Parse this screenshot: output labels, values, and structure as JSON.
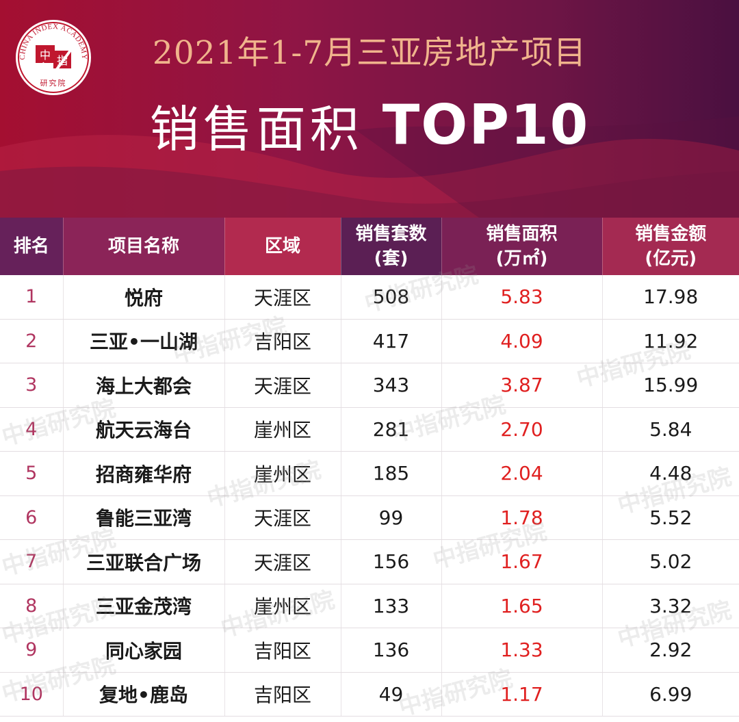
{
  "logo": {
    "ring_text": "CHINA INDEX ACADEMY",
    "center_top": "中",
    "center_bottom": "指",
    "footer_text": "研究院"
  },
  "title": {
    "line1": "2021年1-7月三亚房地产项目",
    "line2_cn": "销售面积",
    "line2_en": "TOP10"
  },
  "colors": {
    "banner": "#9e1238",
    "title_gold": "#f0b48c",
    "area_value": "#e02020",
    "rank_number": "#b03560"
  },
  "chart_data": {
    "type": "table",
    "columns": [
      "排名",
      "项目名称",
      "区域",
      "销售套数\n(套)",
      "销售面积\n(万㎡)",
      "销售金额\n(亿元)"
    ],
    "rows": [
      [
        "1",
        "悦府",
        "天涯区",
        "508",
        "5.83",
        "17.98"
      ],
      [
        "2",
        "三亚•一山湖",
        "吉阳区",
        "417",
        "4.09",
        "11.92"
      ],
      [
        "3",
        "海上大都会",
        "天涯区",
        "343",
        "3.87",
        "15.99"
      ],
      [
        "4",
        "航天云海台",
        "崖州区",
        "281",
        "2.70",
        "5.84"
      ],
      [
        "5",
        "招商雍华府",
        "崖州区",
        "185",
        "2.04",
        "4.48"
      ],
      [
        "6",
        "鲁能三亚湾",
        "天涯区",
        "99",
        "1.78",
        "5.52"
      ],
      [
        "7",
        "三亚联合广场",
        "天涯区",
        "156",
        "1.67",
        "5.02"
      ],
      [
        "8",
        "三亚金茂湾",
        "崖州区",
        "133",
        "1.65",
        "3.32"
      ],
      [
        "9",
        "同心家园",
        "吉阳区",
        "136",
        "1.33",
        "2.92"
      ],
      [
        "10",
        "复地•鹿岛",
        "吉阳区",
        "49",
        "1.17",
        "6.99"
      ]
    ]
  },
  "watermark": "中指研究院"
}
